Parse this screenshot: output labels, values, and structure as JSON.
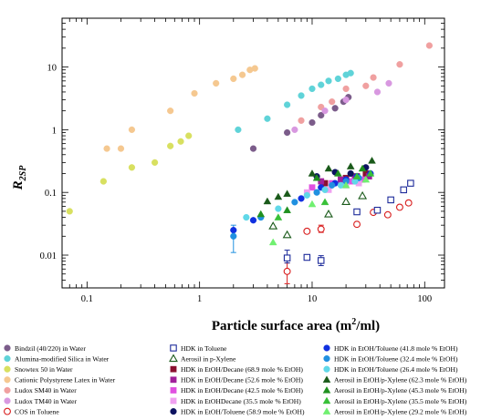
{
  "chart_data": {
    "type": "scatter",
    "xscale": "log",
    "yscale": "log",
    "xlim": [
      0.06,
      150
    ],
    "ylim": [
      0.003,
      60
    ],
    "xlabel": "Particle surface area (m",
    "xlabel_sup": "2",
    "xlabel_end": "/ml)",
    "ylabel_main": "R",
    "ylabel_sub": "2SP",
    "x_ticks": [
      {
        "v": 0.1,
        "label": "0.1"
      },
      {
        "v": 1,
        "label": "1"
      },
      {
        "v": 10,
        "label": "10"
      },
      {
        "v": 100,
        "label": "100"
      }
    ],
    "y_ticks": [
      {
        "v": 0.01,
        "label": "0.01"
      },
      {
        "v": 0.1,
        "label": "0.1"
      },
      {
        "v": 1,
        "label": "1"
      },
      {
        "v": 10,
        "label": "10"
      }
    ],
    "series": [
      {
        "name": "Bindzil (40/220) in Water",
        "marker": "circle",
        "color": "#7b5c8a",
        "filled": true,
        "points": [
          [
            3,
            0.5
          ],
          [
            6,
            0.9
          ],
          [
            10,
            1.3
          ],
          [
            12,
            1.7
          ],
          [
            16,
            2.2
          ],
          [
            19,
            2.8
          ],
          [
            21,
            3.3
          ]
        ]
      },
      {
        "name": "Alumina-modified Silica in Water",
        "marker": "circle",
        "color": "#5fd3d8",
        "filled": true,
        "points": [
          [
            2.2,
            1.0
          ],
          [
            4,
            1.5
          ],
          [
            6,
            2.5
          ],
          [
            8,
            3.5
          ],
          [
            10,
            4.5
          ],
          [
            12,
            5.2
          ],
          [
            14,
            6.0
          ],
          [
            17,
            6.5
          ],
          [
            20,
            7.5
          ],
          [
            22,
            8.0
          ]
        ]
      },
      {
        "name": "Snowtex 50 in Water",
        "marker": "circle",
        "color": "#d8e060",
        "filled": true,
        "points": [
          [
            0.07,
            0.05
          ],
          [
            0.14,
            0.15
          ],
          [
            0.25,
            0.25
          ],
          [
            0.4,
            0.3
          ],
          [
            0.55,
            0.55
          ],
          [
            0.68,
            0.65
          ],
          [
            0.8,
            0.8
          ]
        ]
      },
      {
        "name": "Cationic Polystyrene Latex in Water",
        "marker": "circle",
        "color": "#f5c890",
        "filled": true,
        "points": [
          [
            0.15,
            0.5
          ],
          [
            0.2,
            0.5
          ],
          [
            0.25,
            1.0
          ],
          [
            0.55,
            2.0
          ],
          [
            0.9,
            3.8
          ],
          [
            1.4,
            5.5
          ],
          [
            2.0,
            6.5
          ],
          [
            2.4,
            7.5
          ],
          [
            2.8,
            9.0
          ],
          [
            3.1,
            9.5
          ]
        ]
      },
      {
        "name": "Ludox SM40 in Water",
        "marker": "circle",
        "color": "#f0a0a0",
        "filled": true,
        "points": [
          [
            8,
            1.4
          ],
          [
            12,
            2.3
          ],
          [
            15,
            2.8
          ],
          [
            20,
            4.5
          ],
          [
            30,
            5.0
          ],
          [
            35,
            6.8
          ],
          [
            60,
            11
          ],
          [
            110,
            22
          ]
        ]
      },
      {
        "name": "Ludox TM40 in Water",
        "marker": "circle",
        "color": "#d898e0",
        "filled": true,
        "points": [
          [
            7,
            1.0
          ],
          [
            13,
            2.0
          ],
          [
            20,
            3.0
          ],
          [
            38,
            4.0
          ],
          [
            48,
            5.5
          ]
        ]
      },
      {
        "name": "COS in Toluene",
        "marker": "circle",
        "color": "#d81c1c",
        "filled": false,
        "points": [
          [
            6,
            0.0055
          ],
          [
            12,
            0.026
          ],
          [
            9,
            0.024
          ],
          [
            25,
            0.031
          ],
          [
            35,
            0.048
          ],
          [
            47,
            0.044
          ],
          [
            60,
            0.058
          ],
          [
            72,
            0.068
          ]
        ]
      },
      {
        "name": "HDK in Toluene",
        "marker": "square",
        "color": "#1c2a9a",
        "filled": false,
        "points": [
          [
            6,
            0.009
          ],
          [
            9,
            0.0092
          ],
          [
            12,
            0.0082
          ],
          [
            25,
            0.049
          ],
          [
            38,
            0.052
          ],
          [
            50,
            0.076
          ],
          [
            65,
            0.11
          ],
          [
            75,
            0.14
          ]
        ]
      },
      {
        "name": "Aerosil in p-Xylene",
        "marker": "triangle",
        "color": "#1a5a1a",
        "filled": false,
        "points": [
          [
            4.5,
            0.029
          ],
          [
            6,
            0.021
          ],
          [
            14,
            0.045
          ],
          [
            20,
            0.071
          ],
          [
            28,
            0.088
          ]
        ]
      },
      {
        "name": "HDK in EtOH/Decane (68.9 mole % EtOH)",
        "marker": "square",
        "color": "#8a1030",
        "filled": true,
        "points": [
          [
            13,
            0.14
          ],
          [
            20,
            0.17
          ],
          [
            25,
            0.18
          ],
          [
            30,
            0.2
          ]
        ]
      },
      {
        "name": "HDK in EtOH/Decane (52.6 mole % EtOH)",
        "marker": "square",
        "color": "#a0209a",
        "filled": true,
        "points": [
          [
            12,
            0.15
          ],
          [
            18,
            0.16
          ],
          [
            24,
            0.17
          ],
          [
            32,
            0.18
          ]
        ]
      },
      {
        "name": "HDK in EtOH/Decane (42.5 mole % EtOH)",
        "marker": "square",
        "color": "#e050e0",
        "filled": true,
        "points": [
          [
            10,
            0.12
          ],
          [
            15,
            0.14
          ],
          [
            22,
            0.15
          ],
          [
            28,
            0.16
          ]
        ]
      },
      {
        "name": "HDK in EtOHDecane (35.5 mole % EtOH)",
        "marker": "square",
        "color": "#f0a0f0",
        "filled": true,
        "points": [
          [
            9,
            0.1
          ],
          [
            14,
            0.11
          ],
          [
            20,
            0.13
          ],
          [
            26,
            0.14
          ]
        ]
      },
      {
        "name": "HDK in EtOH/Toluene (58.9 mole % EtOH)",
        "marker": "circle",
        "color": "#0c1260",
        "filled": true,
        "points": [
          [
            11,
            0.18
          ],
          [
            16,
            0.21
          ],
          [
            22,
            0.2
          ],
          [
            30,
            0.25
          ]
        ]
      },
      {
        "name": "HDK in EtOH/Toluene (41.8 mole % EtOH)",
        "marker": "circle",
        "color": "#1030e0",
        "filled": true,
        "points": [
          [
            2,
            0.025
          ],
          [
            3,
            0.036
          ],
          [
            8,
            0.08
          ],
          [
            12,
            0.12
          ],
          [
            16,
            0.14
          ],
          [
            20,
            0.16
          ],
          [
            25,
            0.18
          ],
          [
            33,
            0.2
          ]
        ]
      },
      {
        "name": "HDK in EtOH/Toluene (32.4 mole % EtOH)",
        "marker": "circle",
        "color": "#2090e0",
        "filled": true,
        "points": [
          [
            2,
            0.02
          ],
          [
            3.5,
            0.04
          ],
          [
            7,
            0.07
          ],
          [
            11,
            0.1
          ],
          [
            15,
            0.13
          ],
          [
            20,
            0.15
          ],
          [
            26,
            0.17
          ]
        ]
      },
      {
        "name": "HDK in EtOH/Toluene (26.4 mole % EtOH)",
        "marker": "circle",
        "color": "#60d8e8",
        "filled": true,
        "points": [
          [
            2.6,
            0.04
          ],
          [
            5,
            0.055
          ],
          [
            9,
            0.09
          ],
          [
            13,
            0.11
          ],
          [
            18,
            0.13
          ],
          [
            24,
            0.15
          ]
        ]
      },
      {
        "name": "Aerosil in EtOH/p-Xylene (62.3 mole % EtOH)",
        "marker": "triangle",
        "color": "#1a5a1a",
        "filled": true,
        "points": [
          [
            4,
            0.072
          ],
          [
            5,
            0.085
          ],
          [
            6,
            0.095
          ],
          [
            10,
            0.2
          ],
          [
            14,
            0.24
          ],
          [
            22,
            0.26
          ],
          [
            34,
            0.32
          ]
        ]
      },
      {
        "name": "Aerosil in EtOH/p-Xylene (45.3 mole % EtOH)",
        "marker": "triangle",
        "color": "#209020",
        "filled": true,
        "points": [
          [
            3.5,
            0.045
          ],
          [
            6,
            0.052
          ],
          [
            11,
            0.17
          ],
          [
            17,
            0.2
          ],
          [
            28,
            0.24
          ]
        ]
      },
      {
        "name": "Aerosil in EtOH/p-Xylene (35.5 mole % EtOH)",
        "marker": "triangle",
        "color": "#38c038",
        "filled": true,
        "points": [
          [
            5,
            0.04
          ],
          [
            13,
            0.07
          ],
          [
            25,
            0.18
          ],
          [
            33,
            0.2
          ]
        ]
      },
      {
        "name": "Aerosil in EtOH/p-Xylene (29.2 mole % EtOH)",
        "marker": "triangle",
        "color": "#70f070",
        "filled": true,
        "points": [
          [
            4.5,
            0.016
          ],
          [
            10,
            0.065
          ],
          [
            20,
            0.13
          ],
          [
            30,
            0.16
          ]
        ]
      }
    ],
    "error_bars": [
      {
        "x": 2,
        "low": 0.011,
        "high": 0.03,
        "color": "#2090e0"
      },
      {
        "x": 6,
        "low": 0.0035,
        "high": 0.0075,
        "color": "#d81c1c"
      },
      {
        "x": 6,
        "low": 0.0075,
        "high": 0.012,
        "color": "#1c2a9a"
      },
      {
        "x": 12,
        "low": 0.0068,
        "high": 0.0098,
        "color": "#1c2a9a"
      },
      {
        "x": 12,
        "low": 0.023,
        "high": 0.03,
        "color": "#d81c1c"
      }
    ]
  }
}
